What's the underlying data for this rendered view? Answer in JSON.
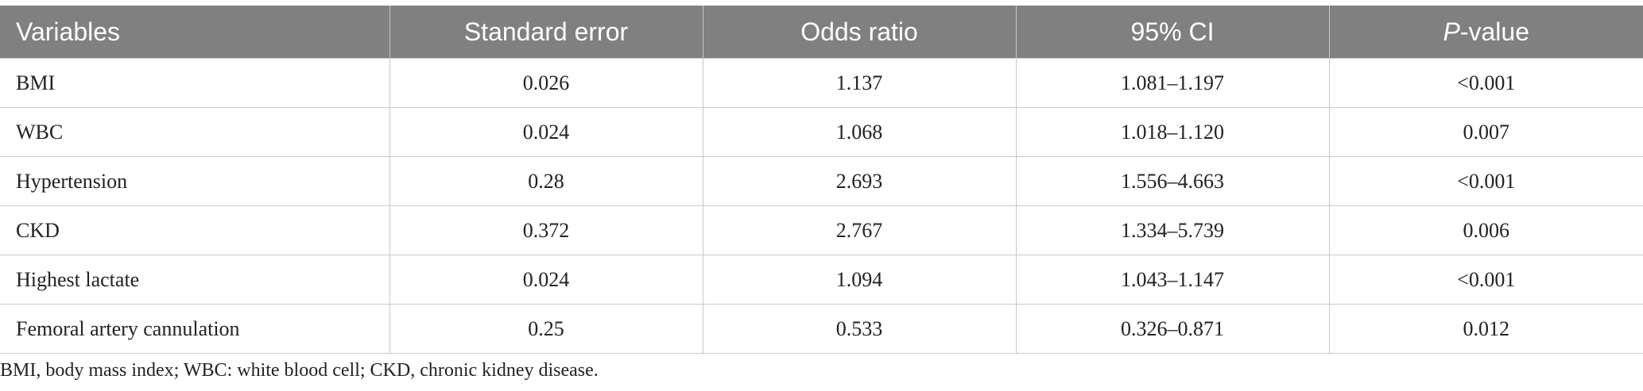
{
  "table": {
    "header": [
      "Variables",
      "Standard error",
      "Odds ratio",
      "95% CI",
      "P-value"
    ],
    "rows": [
      [
        "BMI",
        "0.026",
        "1.137",
        "1.081–1.197",
        "<0.001"
      ],
      [
        "WBC",
        "0.024",
        "1.068",
        "1.018–1.120",
        "0.007"
      ],
      [
        "Hypertension",
        "0.28",
        "2.693",
        "1.556–4.663",
        "<0.001"
      ],
      [
        "CKD",
        "0.372",
        "2.767",
        "1.334–5.739",
        "0.006"
      ],
      [
        "Highest lactate",
        "0.024",
        "1.094",
        "1.043–1.147",
        "<0.001"
      ],
      [
        "Femoral artery cannulation",
        "0.25",
        "0.533",
        "0.326–0.871",
        "0.012"
      ]
    ]
  },
  "footnote": "BMI, body mass index; WBC: white blood cell; CKD, chronic kidney disease."
}
